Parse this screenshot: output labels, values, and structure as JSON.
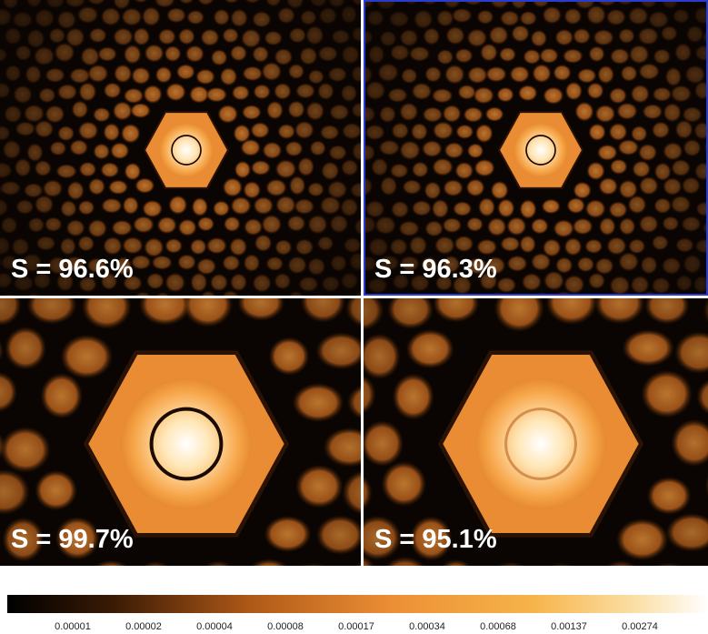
{
  "panels": [
    {
      "label": "S = 96.6%"
    },
    {
      "label": "S = 96.3%"
    },
    {
      "label": "S = 99.7%"
    },
    {
      "label": "S = 95.1%"
    }
  ],
  "colorbar": {
    "ticks": [
      "0.00001",
      "0.00002",
      "0.00004",
      "0.00008",
      "0.00017",
      "0.00034",
      "0.00068",
      "0.00137",
      "0.00274"
    ]
  }
}
